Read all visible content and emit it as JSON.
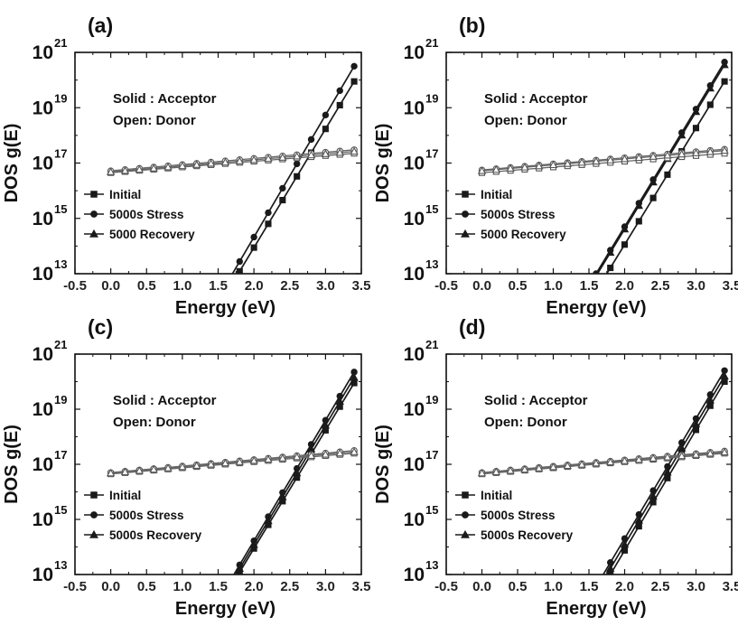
{
  "chart_data": [
    {
      "type": "line",
      "panel_label": "(a)",
      "xlabel": "Energy (eV)",
      "ylabel": "DOS g(E)",
      "xlim": [
        -0.5,
        3.5
      ],
      "ylim_log10": [
        13,
        21
      ],
      "y_scale": "log",
      "x_ticks": [
        "-0.5",
        "0.0",
        "0.5",
        "1.0",
        "1.5",
        "2.0",
        "2.5",
        "3.0",
        "3.5"
      ],
      "y_ticks": [
        {
          "base": "10",
          "exp": "13"
        },
        {
          "base": "10",
          "exp": "15"
        },
        {
          "base": "10",
          "exp": "17"
        },
        {
          "base": "10",
          "exp": "19"
        },
        {
          "base": "10",
          "exp": "21"
        }
      ],
      "annotations": [
        "Solid : Acceptor",
        "Open: Donor"
      ],
      "legend_placement": "bottom-left",
      "legend": [
        {
          "name": "Initial",
          "marker": "square"
        },
        {
          "name": "5000s Stress",
          "marker": "circle"
        },
        {
          "name": "5000 Recovery",
          "marker": "triangle"
        }
      ],
      "series": [
        {
          "name": "Initial",
          "type": "acceptor",
          "marker": "square",
          "filled": true,
          "x_start": 1.78,
          "x_end": 3.4,
          "log10_end": 19.95
        },
        {
          "name": "5000s Stress",
          "type": "acceptor",
          "marker": "circle",
          "filled": true,
          "x_start": 1.7,
          "x_end": 3.4,
          "log10_end": 20.5
        },
        {
          "name": "Initial",
          "type": "donor",
          "marker": "square",
          "filled": false,
          "x_start": 0.0,
          "x_end": 3.4,
          "log10_start": 16.65,
          "log10_end": 17.35
        },
        {
          "name": "5000s Stress",
          "type": "donor",
          "marker": "circle",
          "filled": false,
          "x_start": 0.0,
          "x_end": 3.4,
          "log10_start": 16.72,
          "log10_end": 17.48
        },
        {
          "name": "5000 Recovery",
          "type": "donor",
          "marker": "triangle",
          "filled": false,
          "x_start": 0.0,
          "x_end": 3.4,
          "log10_start": 16.68,
          "log10_end": 17.42
        }
      ]
    },
    {
      "type": "line",
      "panel_label": "(b)",
      "xlabel": "Energy (eV)",
      "ylabel": "DOS g(E)",
      "xlim": [
        -0.5,
        3.5
      ],
      "ylim_log10": [
        13,
        21
      ],
      "y_scale": "log",
      "x_ticks": [
        "-0.5",
        "0.0",
        "0.5",
        "1.0",
        "1.5",
        "2.0",
        "2.5",
        "3.0",
        "3.5"
      ],
      "y_ticks": [
        {
          "base": "10",
          "exp": "13"
        },
        {
          "base": "10",
          "exp": "15"
        },
        {
          "base": "10",
          "exp": "17"
        },
        {
          "base": "10",
          "exp": "19"
        },
        {
          "base": "10",
          "exp": "21"
        }
      ],
      "annotations": [
        "Solid : Acceptor",
        "Open: Donor"
      ],
      "legend_placement": "bottom-left",
      "legend": [
        {
          "name": "Initial",
          "marker": "square"
        },
        {
          "name": "5000s Stress",
          "marker": "circle"
        },
        {
          "name": "5000 Recovery",
          "marker": "triangle"
        }
      ],
      "series": [
        {
          "name": "Initial",
          "type": "acceptor",
          "marker": "square",
          "filled": true,
          "x_start": 1.75,
          "x_end": 3.4,
          "log10_end": 19.95
        },
        {
          "name": "5000s Stress",
          "type": "acceptor",
          "marker": "circle",
          "filled": true,
          "x_start": 1.6,
          "x_end": 3.4,
          "log10_end": 20.65
        },
        {
          "name": "5000 Recovery",
          "type": "acceptor",
          "marker": "triangle",
          "filled": true,
          "x_start": 1.62,
          "x_end": 3.4,
          "log10_end": 20.55
        },
        {
          "name": "Initial",
          "type": "donor",
          "marker": "square",
          "filled": false,
          "x_start": 0.0,
          "x_end": 3.4,
          "log10_start": 16.65,
          "log10_end": 17.35
        },
        {
          "name": "5000s Stress",
          "type": "donor",
          "marker": "circle",
          "filled": false,
          "x_start": 0.0,
          "x_end": 3.4,
          "log10_start": 16.75,
          "log10_end": 17.5
        },
        {
          "name": "5000 Recovery",
          "type": "donor",
          "marker": "triangle",
          "filled": false,
          "x_start": 0.0,
          "x_end": 3.4,
          "log10_start": 16.72,
          "log10_end": 17.45
        }
      ]
    },
    {
      "type": "line",
      "panel_label": "(c)",
      "xlabel": "Energy (eV)",
      "ylabel": "DOS g(E)",
      "xlim": [
        -0.5,
        3.5
      ],
      "ylim_log10": [
        13,
        21
      ],
      "y_scale": "log",
      "x_ticks": [
        "-0.5",
        "0.0",
        "0.5",
        "1.0",
        "1.5",
        "2.0",
        "2.5",
        "3.0",
        "3.5"
      ],
      "y_ticks": [
        {
          "base": "10",
          "exp": "13"
        },
        {
          "base": "10",
          "exp": "15"
        },
        {
          "base": "10",
          "exp": "17"
        },
        {
          "base": "10",
          "exp": "19"
        },
        {
          "base": "10",
          "exp": "21"
        }
      ],
      "annotations": [
        "Solid : Acceptor",
        "Open: Donor"
      ],
      "legend_placement": "bottom-left",
      "legend": [
        {
          "name": "Initial",
          "marker": "square"
        },
        {
          "name": "5000s Stress",
          "marker": "circle"
        },
        {
          "name": "5000s Recovery",
          "marker": "triangle"
        }
      ],
      "series": [
        {
          "name": "Initial",
          "type": "acceptor",
          "marker": "square",
          "filled": true,
          "x_start": 1.78,
          "x_end": 3.4,
          "log10_end": 19.95
        },
        {
          "name": "5000s Stress",
          "type": "acceptor",
          "marker": "circle",
          "filled": true,
          "x_start": 1.72,
          "x_end": 3.4,
          "log10_end": 20.35
        },
        {
          "name": "5000s Recovery",
          "type": "acceptor",
          "marker": "triangle",
          "filled": true,
          "x_start": 1.75,
          "x_end": 3.4,
          "log10_end": 20.15
        },
        {
          "name": "Initial",
          "type": "donor",
          "marker": "square",
          "filled": false,
          "x_start": 0.0,
          "x_end": 3.4,
          "log10_start": 16.65,
          "log10_end": 17.4
        },
        {
          "name": "5000s Stress",
          "type": "donor",
          "marker": "circle",
          "filled": false,
          "x_start": 0.0,
          "x_end": 3.4,
          "log10_start": 16.7,
          "log10_end": 17.5
        },
        {
          "name": "5000s Recovery",
          "type": "donor",
          "marker": "triangle",
          "filled": false,
          "x_start": 0.0,
          "x_end": 3.4,
          "log10_start": 16.68,
          "log10_end": 17.45
        }
      ]
    },
    {
      "type": "line",
      "panel_label": "(d)",
      "xlabel": "Energy (eV)",
      "ylabel": "DOS g(E)",
      "xlim": [
        -0.5,
        3.5
      ],
      "ylim_log10": [
        13,
        21
      ],
      "y_scale": "log",
      "x_ticks": [
        "-0.5",
        "0.0",
        "0.5",
        "1.0",
        "1.5",
        "2.0",
        "2.5",
        "3.0",
        "3.5"
      ],
      "y_ticks": [
        {
          "base": "10",
          "exp": "13"
        },
        {
          "base": "10",
          "exp": "15"
        },
        {
          "base": "10",
          "exp": "17"
        },
        {
          "base": "10",
          "exp": "19"
        },
        {
          "base": "10",
          "exp": "21"
        }
      ],
      "annotations": [
        "Solid : Acceptor",
        "Open: Donor"
      ],
      "legend_placement": "bottom-left",
      "legend": [
        {
          "name": "Initial",
          "marker": "square"
        },
        {
          "name": "5000s Stress",
          "marker": "circle"
        },
        {
          "name": "5000s Recovery",
          "marker": "triangle"
        }
      ],
      "series": [
        {
          "name": "Initial",
          "type": "acceptor",
          "marker": "square",
          "filled": true,
          "x_start": 1.8,
          "x_end": 3.4,
          "log10_end": 20.0
        },
        {
          "name": "5000s Stress",
          "type": "acceptor",
          "marker": "circle",
          "filled": true,
          "x_start": 1.7,
          "x_end": 3.4,
          "log10_end": 20.4
        },
        {
          "name": "5000s Recovery",
          "type": "acceptor",
          "marker": "triangle",
          "filled": true,
          "x_start": 1.75,
          "x_end": 3.4,
          "log10_end": 20.2
        },
        {
          "name": "Initial",
          "type": "donor",
          "marker": "square",
          "filled": false,
          "x_start": 0.0,
          "x_end": 3.4,
          "log10_start": 16.65,
          "log10_end": 17.4
        },
        {
          "name": "5000s Stress",
          "type": "donor",
          "marker": "circle",
          "filled": false,
          "x_start": 0.0,
          "x_end": 3.4,
          "log10_start": 16.7,
          "log10_end": 17.48
        },
        {
          "name": "5000s Recovery",
          "type": "donor",
          "marker": "triangle",
          "filled": false,
          "x_start": 0.0,
          "x_end": 3.4,
          "log10_start": 16.68,
          "log10_end": 17.44
        }
      ]
    }
  ]
}
